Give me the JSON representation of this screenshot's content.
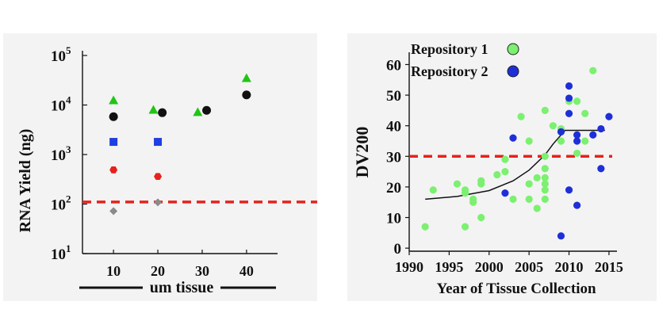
{
  "chart_data": [
    {
      "type": "scatter",
      "title": "",
      "ylabel": "RNA Yield (ng)",
      "xlabel": "um tissue",
      "yscale": "log",
      "ylim": [
        10,
        100000
      ],
      "xlim": [
        3,
        47
      ],
      "xticks": [
        "10",
        "20",
        "30",
        "40"
      ],
      "yticks": [
        {
          "base": "10",
          "exp": "1",
          "value": 10
        },
        {
          "base": "10",
          "exp": "2",
          "value": 100
        },
        {
          "base": "10",
          "exp": "3",
          "value": 1000
        },
        {
          "base": "10",
          "exp": "4",
          "value": 10000
        },
        {
          "base": "10",
          "exp": "5",
          "value": 100000
        }
      ],
      "threshold": {
        "value": 110,
        "color": "#e8211b",
        "style": "dashed"
      },
      "series": [
        {
          "marker": "triangle",
          "color": "#22c416",
          "points": [
            [
              10,
              12500
            ],
            [
              19,
              8000
            ],
            [
              29,
              7200
            ],
            [
              40,
              35000
            ]
          ]
        },
        {
          "marker": "circle",
          "color": "#111111",
          "points": [
            [
              10,
              5800
            ],
            [
              21,
              7000
            ],
            [
              31,
              7800
            ],
            [
              40,
              16000
            ]
          ]
        },
        {
          "marker": "square",
          "color": "#1f3fe0",
          "points": [
            [
              10,
              1800
            ],
            [
              20,
              1800
            ]
          ]
        },
        {
          "marker": "hexagon",
          "color": "#e8211b",
          "points": [
            [
              10,
              490
            ],
            [
              20,
              360
            ]
          ]
        },
        {
          "marker": "diamond",
          "color": "#8a8a8a",
          "points": [
            [
              10,
              72
            ],
            [
              20,
              108
            ]
          ]
        }
      ]
    },
    {
      "type": "scatter",
      "title": "",
      "ylabel": "DV200",
      "xlabel": "Year of Tissue Collection",
      "xlim": [
        1990,
        2016
      ],
      "ylim": [
        -1,
        64
      ],
      "xticks": [
        "1990",
        "1995",
        "2000",
        "2005",
        "2010",
        "2015"
      ],
      "yticks": [
        "0",
        "10",
        "20",
        "30",
        "40",
        "50",
        "60"
      ],
      "threshold": {
        "value": 30,
        "color": "#e8211b",
        "style": "dashed"
      },
      "legend": [
        {
          "label": "Repository 1",
          "color": "#7cf070"
        },
        {
          "label": "Repository 2",
          "color": "#1f2fd8"
        }
      ],
      "series": [
        {
          "name": "Repository 1",
          "color": "#7cf070",
          "points": [
            [
              1992,
              7
            ],
            [
              1993,
              19
            ],
            [
              1996,
              21
            ],
            [
              1997,
              7
            ],
            [
              1997,
              18
            ],
            [
              1997,
              19
            ],
            [
              1998,
              15
            ],
            [
              1998,
              16
            ],
            [
              1999,
              10
            ],
            [
              1999,
              21
            ],
            [
              1999,
              22
            ],
            [
              2001,
              24
            ],
            [
              2002,
              25
            ],
            [
              2002,
              29
            ],
            [
              2003,
              16
            ],
            [
              2004,
              43
            ],
            [
              2005,
              16
            ],
            [
              2005,
              21
            ],
            [
              2005,
              35
            ],
            [
              2006,
              13
            ],
            [
              2006,
              23
            ],
            [
              2007,
              16
            ],
            [
              2007,
              19
            ],
            [
              2007,
              21
            ],
            [
              2007,
              23
            ],
            [
              2007,
              26
            ],
            [
              2007,
              30
            ],
            [
              2007,
              45
            ],
            [
              2008,
              40
            ],
            [
              2009,
              35
            ],
            [
              2009,
              39
            ],
            [
              2010,
              48
            ],
            [
              2011,
              31
            ],
            [
              2011,
              48
            ],
            [
              2012,
              35
            ],
            [
              2012,
              44
            ],
            [
              2013,
              58
            ]
          ]
        },
        {
          "name": "Repository 2",
          "color": "#1f2fd8",
          "points": [
            [
              2002,
              18
            ],
            [
              2003,
              36
            ],
            [
              2009,
              4
            ],
            [
              2009,
              38
            ],
            [
              2010,
              19
            ],
            [
              2010,
              44
            ],
            [
              2010,
              49
            ],
            [
              2010,
              53
            ],
            [
              2011,
              14
            ],
            [
              2011,
              35
            ],
            [
              2011,
              37
            ],
            [
              2013,
              37
            ],
            [
              2014,
              26
            ],
            [
              2014,
              39
            ],
            [
              2015,
              43
            ]
          ]
        }
      ],
      "fit_curve": [
        [
          1992,
          16
        ],
        [
          1996,
          16.9
        ],
        [
          2000,
          18.8
        ],
        [
          2003,
          22
        ],
        [
          2005,
          25.5
        ],
        [
          2007,
          30.5
        ],
        [
          2008,
          34
        ],
        [
          2009.5,
          38.5
        ],
        [
          2014.5,
          38.5
        ]
      ]
    }
  ]
}
